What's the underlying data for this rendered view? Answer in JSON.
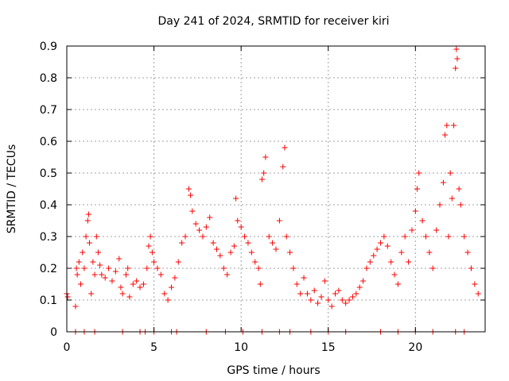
{
  "chart_data": {
    "type": "scatter",
    "title": "Day 241 of 2024, SRMTID for receiver kiri",
    "xlabel": "GPS time / hours",
    "ylabel": "SRMTID / TECUs",
    "xlim": [
      0,
      24
    ],
    "ylim": [
      0,
      0.9
    ],
    "xticks": [
      "0",
      "5",
      "10",
      "15",
      "20"
    ],
    "yticks": [
      "0",
      "0.1",
      "0.2",
      "0.3",
      "0.4",
      "0.5",
      "0.6",
      "0.7",
      "0.8",
      "0.9"
    ],
    "grid": true,
    "marker": "+",
    "color": "#ff0000",
    "series": [
      {
        "name": "SRMTID",
        "points": [
          [
            0.0,
            0.12
          ],
          [
            0.05,
            0.11
          ],
          [
            0.5,
            0.08
          ],
          [
            0.55,
            0.2
          ],
          [
            0.6,
            0.18
          ],
          [
            0.7,
            0.22
          ],
          [
            0.8,
            0.15
          ],
          [
            0.9,
            0.25
          ],
          [
            1.0,
            0.2
          ],
          [
            1.1,
            0.3
          ],
          [
            1.2,
            0.35
          ],
          [
            1.25,
            0.37
          ],
          [
            1.3,
            0.28
          ],
          [
            1.4,
            0.12
          ],
          [
            1.5,
            0.22
          ],
          [
            1.6,
            0.18
          ],
          [
            1.7,
            0.3
          ],
          [
            1.8,
            0.25
          ],
          [
            1.9,
            0.21
          ],
          [
            2.0,
            0.18
          ],
          [
            2.2,
            0.17
          ],
          [
            2.4,
            0.2
          ],
          [
            2.6,
            0.16
          ],
          [
            2.8,
            0.19
          ],
          [
            3.0,
            0.23
          ],
          [
            3.1,
            0.14
          ],
          [
            3.2,
            0.12
          ],
          [
            3.4,
            0.18
          ],
          [
            3.5,
            0.2
          ],
          [
            3.6,
            0.11
          ],
          [
            3.8,
            0.15
          ],
          [
            4.0,
            0.16
          ],
          [
            4.2,
            0.14
          ],
          [
            4.4,
            0.15
          ],
          [
            4.6,
            0.2
          ],
          [
            4.7,
            0.27
          ],
          [
            4.8,
            0.3
          ],
          [
            4.9,
            0.25
          ],
          [
            5.0,
            0.22
          ],
          [
            5.2,
            0.2
          ],
          [
            5.4,
            0.18
          ],
          [
            5.6,
            0.12
          ],
          [
            5.8,
            0.1
          ],
          [
            6.0,
            0.14
          ],
          [
            6.2,
            0.17
          ],
          [
            6.4,
            0.22
          ],
          [
            6.6,
            0.28
          ],
          [
            6.8,
            0.3
          ],
          [
            7.0,
            0.45
          ],
          [
            7.1,
            0.43
          ],
          [
            7.2,
            0.38
          ],
          [
            7.4,
            0.34
          ],
          [
            7.6,
            0.32
          ],
          [
            7.8,
            0.3
          ],
          [
            8.0,
            0.33
          ],
          [
            8.2,
            0.36
          ],
          [
            8.4,
            0.28
          ],
          [
            8.6,
            0.26
          ],
          [
            8.8,
            0.24
          ],
          [
            9.0,
            0.2
          ],
          [
            9.2,
            0.18
          ],
          [
            9.4,
            0.25
          ],
          [
            9.6,
            0.27
          ],
          [
            9.7,
            0.42
          ],
          [
            9.8,
            0.35
          ],
          [
            10.0,
            0.33
          ],
          [
            10.2,
            0.3
          ],
          [
            10.4,
            0.28
          ],
          [
            10.6,
            0.25
          ],
          [
            10.8,
            0.22
          ],
          [
            11.0,
            0.2
          ],
          [
            11.1,
            0.15
          ],
          [
            11.2,
            0.48
          ],
          [
            11.3,
            0.5
          ],
          [
            11.4,
            0.55
          ],
          [
            11.6,
            0.3
          ],
          [
            11.8,
            0.28
          ],
          [
            12.0,
            0.26
          ],
          [
            12.2,
            0.35
          ],
          [
            12.4,
            0.52
          ],
          [
            12.5,
            0.58
          ],
          [
            12.6,
            0.3
          ],
          [
            12.8,
            0.25
          ],
          [
            13.0,
            0.2
          ],
          [
            13.2,
            0.15
          ],
          [
            13.4,
            0.12
          ],
          [
            13.6,
            0.17
          ],
          [
            13.8,
            0.12
          ],
          [
            14.0,
            0.1
          ],
          [
            14.2,
            0.13
          ],
          [
            14.4,
            0.09
          ],
          [
            14.6,
            0.11
          ],
          [
            14.8,
            0.16
          ],
          [
            15.0,
            0.1
          ],
          [
            15.2,
            0.08
          ],
          [
            15.4,
            0.12
          ],
          [
            15.6,
            0.13
          ],
          [
            15.8,
            0.1
          ],
          [
            16.0,
            0.09
          ],
          [
            16.2,
            0.1
          ],
          [
            16.4,
            0.11
          ],
          [
            16.6,
            0.12
          ],
          [
            16.8,
            0.14
          ],
          [
            17.0,
            0.16
          ],
          [
            17.2,
            0.2
          ],
          [
            17.4,
            0.22
          ],
          [
            17.6,
            0.24
          ],
          [
            17.8,
            0.26
          ],
          [
            18.0,
            0.28
          ],
          [
            18.2,
            0.3
          ],
          [
            18.4,
            0.27
          ],
          [
            18.6,
            0.22
          ],
          [
            18.8,
            0.18
          ],
          [
            19.0,
            0.15
          ],
          [
            19.2,
            0.25
          ],
          [
            19.4,
            0.3
          ],
          [
            19.6,
            0.22
          ],
          [
            19.8,
            0.32
          ],
          [
            20.0,
            0.38
          ],
          [
            20.1,
            0.45
          ],
          [
            20.2,
            0.5
          ],
          [
            20.4,
            0.35
          ],
          [
            20.6,
            0.3
          ],
          [
            20.8,
            0.25
          ],
          [
            21.0,
            0.2
          ],
          [
            21.2,
            0.32
          ],
          [
            21.4,
            0.4
          ],
          [
            21.6,
            0.47
          ],
          [
            21.7,
            0.62
          ],
          [
            21.8,
            0.65
          ],
          [
            21.9,
            0.3
          ],
          [
            22.0,
            0.5
          ],
          [
            22.1,
            0.42
          ],
          [
            22.2,
            0.65
          ],
          [
            22.3,
            0.83
          ],
          [
            22.35,
            0.89
          ],
          [
            22.4,
            0.86
          ],
          [
            22.5,
            0.45
          ],
          [
            22.6,
            0.4
          ],
          [
            22.8,
            0.3
          ],
          [
            23.0,
            0.25
          ],
          [
            23.2,
            0.2
          ],
          [
            23.4,
            0.15
          ],
          [
            23.6,
            0.12
          ]
        ]
      }
    ],
    "zero_markers_x": [
      0.5,
      1.0,
      1.6,
      3.2,
      4.2,
      4.5,
      5.0,
      6.0,
      6.3,
      8.0,
      9.1,
      10.1,
      11.2,
      12.2,
      12.8,
      14.0,
      15.0,
      16.0,
      18.0,
      19.0,
      20.0,
      21.0,
      22.3,
      22.8
    ]
  }
}
